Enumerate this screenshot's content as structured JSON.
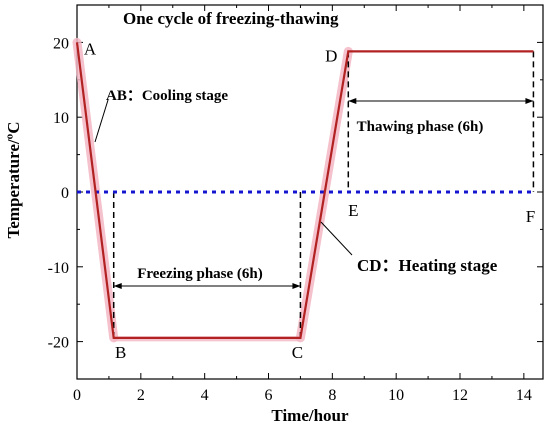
{
  "chart_data": {
    "type": "line",
    "title": "One cycle of  freezing-thawing",
    "xlabel": "Time/hour",
    "ylabel": "Temperature/ºC",
    "xlim": [
      0,
      14.6
    ],
    "ylim": [
      -25,
      25
    ],
    "x_ticks": [
      0,
      2,
      4,
      6,
      8,
      10,
      12,
      14
    ],
    "x_tick_labels": [
      "0",
      "2",
      "4",
      "6",
      "8",
      "10",
      "12",
      "14"
    ],
    "y_ticks": [
      -20,
      -10,
      0,
      10,
      20
    ],
    "y_tick_labels": [
      "-20",
      "-10",
      "0",
      "10",
      "20"
    ],
    "series": [
      {
        "color": "#b22222",
        "x": [
          0,
          1.15,
          7.0,
          8.5,
          14.3
        ],
        "y": [
          20,
          -19.5,
          -19.5,
          18.8,
          18.8
        ]
      },
      {
        "color": "#1515d0",
        "style": "dotted",
        "x": [
          0,
          14.3
        ],
        "y": [
          0,
          0
        ]
      }
    ],
    "point_labels": [
      {
        "text": "A",
        "x": 0,
        "y": 20
      },
      {
        "text": "B",
        "x": 1.15,
        "y": -19.5
      },
      {
        "text": "C",
        "x": 7.0,
        "y": -19.5
      },
      {
        "text": "D",
        "x": 8.5,
        "y": 18.8
      },
      {
        "text": "E",
        "x": 8.5,
        "y": 0
      },
      {
        "text": "F",
        "x": 14.3,
        "y": 0
      }
    ],
    "annotations": {
      "cooling": "AB：Cooling stage",
      "heating": "CD：Heating stage",
      "freezing_phase": "Freezing phase (6h)",
      "thawing_phase": "Thawing phase (6h)"
    }
  }
}
